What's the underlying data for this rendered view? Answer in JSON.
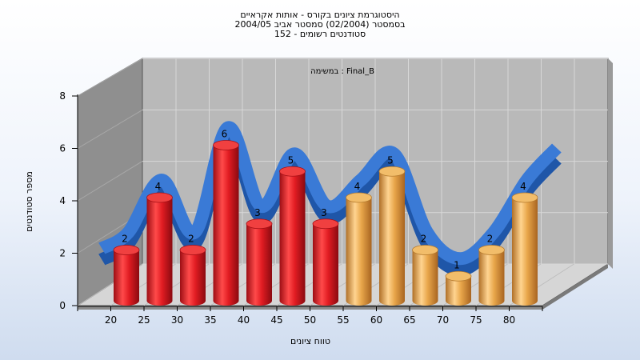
{
  "titles": [
    "היסטוגרמת ציונים בקורס - אותות אקראיים",
    "בסמסטר  (02/2004)  סמסטר אביב 2004/05",
    "סטודנטים רשומים - 152"
  ],
  "chart_data": {
    "type": "bar",
    "title": "היסטוגרמת ציונים בקורס - אותות אקראיים",
    "subtitle_lines": [
      "בסמסטר  (02/2004)  סמסטר אביב 2004/05",
      "סטודנטים רשומים - 152"
    ],
    "annotation": "במשימה : Final_B",
    "xlabel": "טווח ציונים",
    "ylabel": "מספר סטודנטים",
    "ylim": [
      0,
      8
    ],
    "yticks": [
      0,
      2,
      4,
      6,
      8
    ],
    "categories": [
      "20",
      "25",
      "30",
      "35",
      "40",
      "45",
      "50",
      "55",
      "60",
      "65",
      "70",
      "75",
      "80"
    ],
    "values": [
      2,
      4,
      2,
      6,
      3,
      5,
      3,
      4,
      5,
      2,
      1,
      2,
      4
    ],
    "bar_colors": [
      "red",
      "red",
      "red",
      "red",
      "red",
      "red",
      "red",
      "gold",
      "gold",
      "gold",
      "gold",
      "gold",
      "gold"
    ],
    "trend_line": true,
    "grid": true,
    "colors": {
      "red_bar": "#e8202a",
      "gold_bar": "#e9a84a",
      "trend": "#2f6fc8",
      "wall": "#b9b9b9",
      "side_wall": "#8f8f8f"
    }
  }
}
